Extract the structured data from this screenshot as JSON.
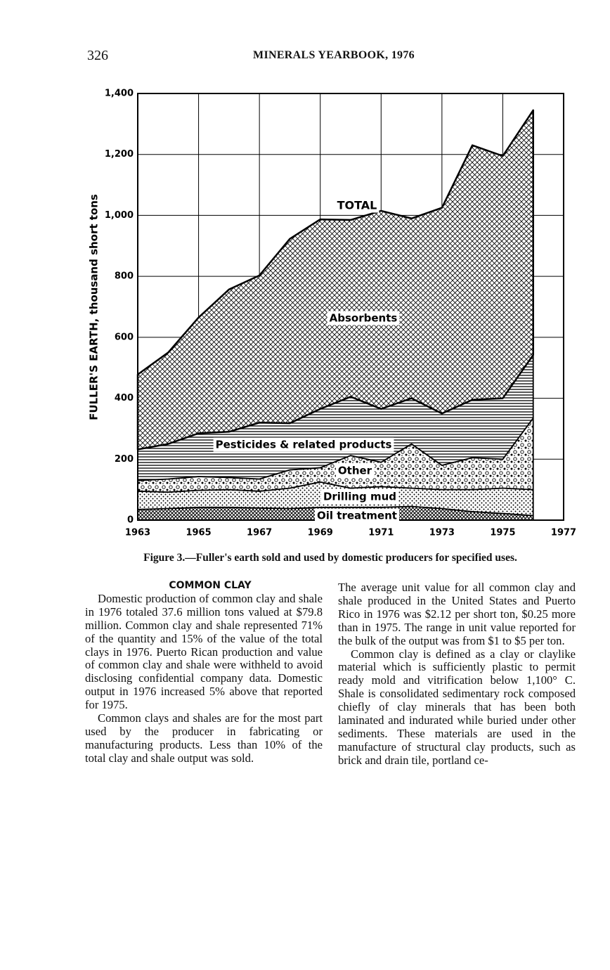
{
  "header": {
    "page_number": "326",
    "title": "MINERALS YEARBOOK, 1976"
  },
  "chart_data": {
    "type": "stacked_area",
    "y_label": "FULLER'S EARTH, thousand short tons",
    "total_label": "TOTAL",
    "x": [
      1963,
      1964,
      1965,
      1966,
      1967,
      1968,
      1969,
      1970,
      1971,
      1972,
      1973,
      1974,
      1975,
      1976
    ],
    "xlim": [
      1963,
      1977
    ],
    "xticks": [
      1963,
      1965,
      1967,
      1969,
      1971,
      1973,
      1975,
      1977
    ],
    "ylim": [
      0,
      1400
    ],
    "yticks": [
      0,
      200,
      400,
      600,
      800,
      {
        "value": 1000,
        "label": "1,000"
      },
      {
        "value": 1200,
        "label": "1,200"
      },
      {
        "value": 1400,
        "label": "1,400"
      }
    ],
    "grid": true,
    "series": [
      {
        "name": "Oil treatment",
        "color": "#000000",
        "values": [
          35,
          38,
          42,
          42,
          40,
          38,
          42,
          42,
          42,
          45,
          38,
          28,
          22,
          15
        ]
      },
      {
        "name": "Drilling mud",
        "color": "#000000",
        "values": [
          60,
          54,
          56,
          58,
          55,
          67,
          83,
          63,
          68,
          60,
          62,
          72,
          83,
          85
        ]
      },
      {
        "name": "Other",
        "color": "#000000",
        "values": [
          35,
          43,
          45,
          40,
          40,
          60,
          47,
          107,
          80,
          145,
          80,
          105,
          95,
          235
        ]
      },
      {
        "name": "Pesticides & related products",
        "color": "#000000",
        "values": [
          102,
          115,
          142,
          150,
          185,
          153,
          193,
          193,
          175,
          150,
          170,
          190,
          200,
          207
        ]
      },
      {
        "name": "Absorbents",
        "color": "#000000",
        "values": [
          246,
          300,
          380,
          467,
          483,
          605,
          622,
          580,
          650,
          590,
          675,
          835,
          795,
          803
        ]
      }
    ]
  },
  "caption": "Figure 3.—Fuller's earth sold and used by domestic producers for specified uses.",
  "left_column": {
    "heading": "COMMON CLAY",
    "paragraphs": [
      "Domestic production of common clay and shale in 1976 totaled 37.6 million tons valued at $79.8 million. Common clay and shale represented 71% of the quantity and 15% of the value of the total clays in 1976. Puerto Rican production and value of common clay and shale were withheld to avoid disclosing confidential company data. Domestic output in 1976 increased 5% above that reported for 1975.",
      "Common clays and shales are for the most part used by the producer in fabricating or manufacturing products. Less than 10% of the total clay and shale output was sold."
    ]
  },
  "right_column": {
    "paragraphs": [
      "The average unit value for all common clay and shale produced in the United States and Puerto Rico in 1976 was $2.12 per short ton, $0.25 more than in 1975. The range in unit value reported for the bulk of the output was from $1 to $5 per ton.",
      "Common clay is defined as a clay or claylike material which is sufficiently plastic to permit ready mold and vitrification below 1,100° C. Shale is consolidated sedimentary rock composed chiefly of clay minerals that has been both laminated and indurated while buried under other sediments. These materials are used in the manufacture of structural clay products, such as brick and drain tile, portland ce-"
    ]
  }
}
